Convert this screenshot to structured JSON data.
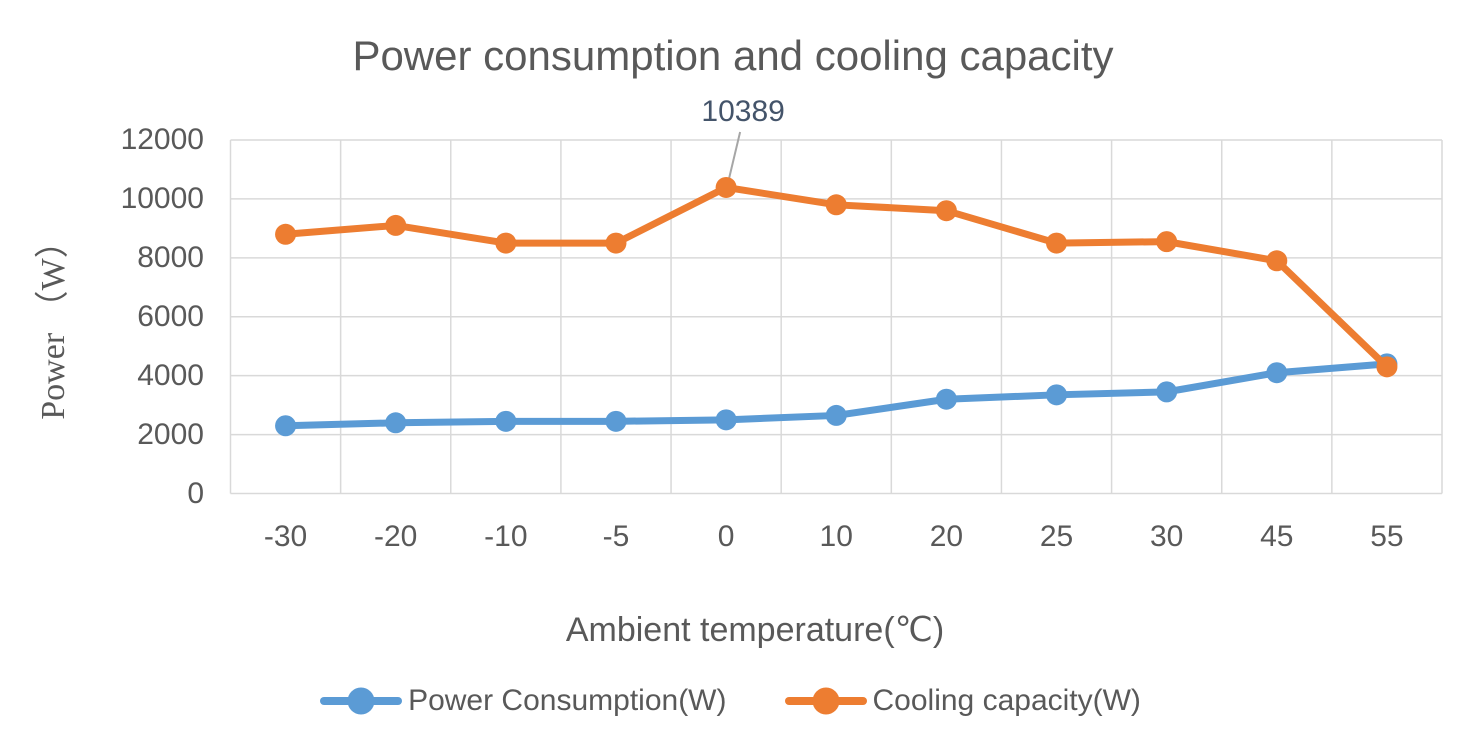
{
  "chart": {
    "title": "Power consumption and cooling capacity",
    "x_axis_title": "Ambient temperature(℃)",
    "y_axis_title": "Power （W）"
  },
  "chart_data": {
    "type": "line",
    "categories": [
      "-30",
      "-20",
      "-10",
      "-5",
      "0",
      "10",
      "20",
      "25",
      "30",
      "45",
      "55"
    ],
    "series": [
      {
        "name": "Power Consumption(W)",
        "color": "#5B9BD5",
        "values": [
          2300,
          2400,
          2450,
          2450,
          2500,
          2650,
          3200,
          3350,
          3450,
          4100,
          4400
        ]
      },
      {
        "name": "Cooling capacity(W)",
        "color": "#ED7D31",
        "values": [
          8800,
          9100,
          8500,
          8500,
          10389,
          9800,
          9600,
          8500,
          8550,
          7900,
          4300
        ]
      }
    ],
    "title": "Power consumption and cooling capacity",
    "xlabel": "Ambient temperature(℃)",
    "ylabel": "Power （W）",
    "ylim": [
      0,
      12000
    ],
    "ytick_step": 2000,
    "yticks": [
      "0",
      "2000",
      "4000",
      "6000",
      "8000",
      "10000",
      "12000"
    ],
    "grid": true,
    "legend_position": "bottom",
    "annotation": {
      "label": "10389",
      "series_index": 1,
      "point_index": 4
    }
  },
  "colors": {
    "series_blue": "#5B9BD5",
    "series_orange": "#ED7D31",
    "text_gray": "#595959",
    "gridline": "#D9D9D9",
    "leader_line": "#A6A6A6",
    "data_label": "#44546A",
    "background": "#FFFFFF"
  }
}
